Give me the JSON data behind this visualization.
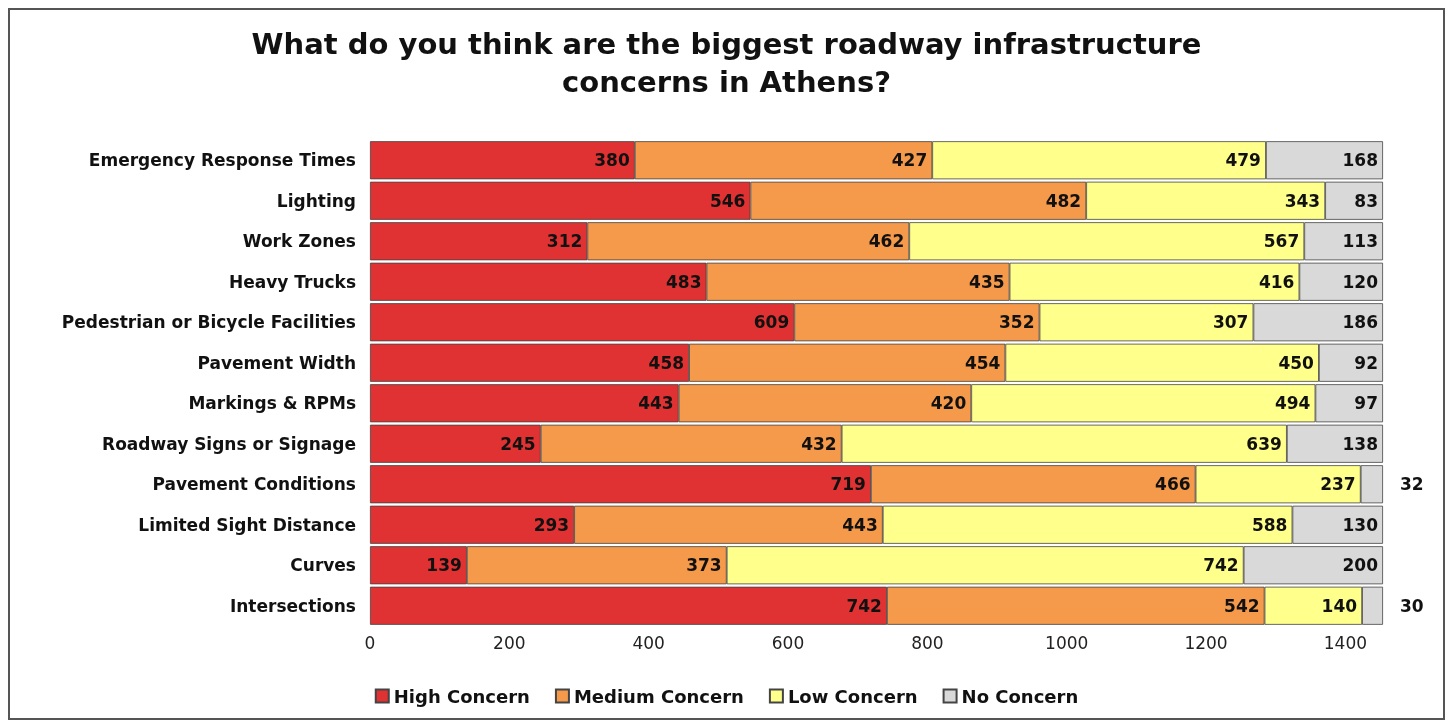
{
  "chart_data": {
    "type": "bar",
    "orientation": "horizontal",
    "stacked": true,
    "title": "What do you think are the biggest roadway infrastructure\nconcerns in Athens?",
    "categories": [
      "Emergency Response Times",
      "Lighting",
      "Work Zones",
      "Heavy Trucks",
      "Pedestrian or Bicycle Facilities",
      "Pavement Width",
      "Markings & RPMs",
      "Roadway Signs or Signage",
      "Pavement Conditions",
      "Limited Sight Distance",
      "Curves",
      "Intersections"
    ],
    "series": [
      {
        "name": "High Concern",
        "color": "#e03232",
        "values": [
          380,
          546,
          312,
          483,
          609,
          458,
          443,
          245,
          719,
          293,
          139,
          742
        ]
      },
      {
        "name": "Medium Concern",
        "color": "#f5994a",
        "values": [
          427,
          482,
          462,
          435,
          352,
          454,
          420,
          432,
          466,
          443,
          373,
          542
        ]
      },
      {
        "name": "Low Concern",
        "color": "#ffff8c",
        "values": [
          479,
          343,
          567,
          416,
          307,
          450,
          494,
          639,
          237,
          588,
          742,
          140
        ]
      },
      {
        "name": "No Concern",
        "color": "#d9d9d9",
        "values": [
          168,
          83,
          113,
          120,
          186,
          92,
          97,
          138,
          32,
          130,
          200,
          30
        ]
      }
    ],
    "xlim": [
      0,
      1454
    ],
    "xticks": [
      0,
      200,
      400,
      600,
      800,
      1000,
      1200,
      1400
    ],
    "grid": false,
    "legend": "bottom",
    "data_labels": true
  }
}
